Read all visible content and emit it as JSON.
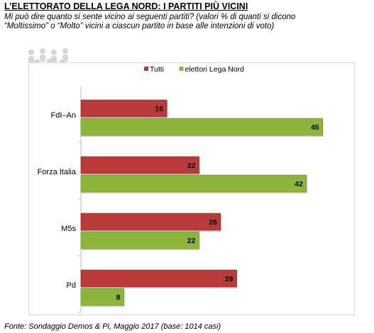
{
  "header": {
    "title": "L’ELETTORATO  DELLA LEGA NORD: I PARTITI PIÙ VICINI",
    "subtitle": "Mi può dire quanto si sente vicino ai seguenti partiti? (valori % di quanti si dicono “Moltissimo” o “Molto” vicini a ciascun partito in base alle intenzioni di voto)"
  },
  "footer": {
    "source": "Fonte: Sondaggio Demos & Pi, Maggio 2017 (base: 1014 casi)"
  },
  "colors": {
    "tutti": "#b83a3a",
    "lega": "#8fb43c",
    "axis": "#bfbfbf"
  },
  "chart_data": {
    "type": "bar",
    "orientation": "horizontal",
    "categories": [
      "FdI–An",
      "Forza Italia",
      "M5s",
      "Pd"
    ],
    "series": [
      {
        "name": "Tutti",
        "values": [
          16,
          22,
          26,
          29
        ]
      },
      {
        "name": "elettori Lega Nord",
        "values": [
          45,
          42,
          22,
          8
        ]
      }
    ],
    "xlim": [
      0,
      50
    ],
    "grid": false,
    "legend": "top-center",
    "data_labels": true
  }
}
